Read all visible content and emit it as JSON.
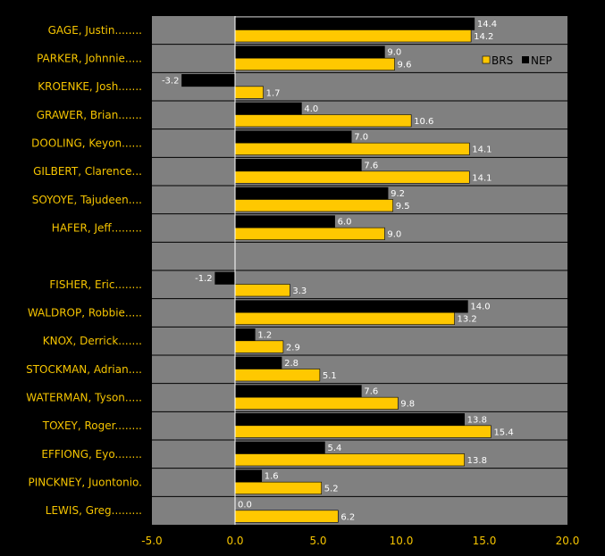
{
  "chart_data": {
    "type": "bar",
    "orientation": "horizontal",
    "xlim": [
      -5.0,
      20.0
    ],
    "x_ticks": [
      "-5.0",
      "0.0",
      "5.0",
      "10.0",
      "15.0",
      "20.0"
    ],
    "legend": {
      "placement": "top-right"
    },
    "colors": {
      "background": "#000000",
      "plot_bg": "#808080",
      "BRS": "#ffc800",
      "NEP": "#000000",
      "label_text": "#f5c400",
      "value_text": "#ffffff"
    },
    "series": [
      {
        "name": "BRS",
        "color": "#ffc800"
      },
      {
        "name": "NEP",
        "color": "#000000"
      }
    ],
    "rows": [
      {
        "label": "GAGE, Justin........",
        "NEP": 14.4,
        "BRS": 14.2
      },
      {
        "label": "PARKER, Johnnie.....",
        "NEP": 9.0,
        "BRS": 9.6
      },
      {
        "label": "KROENKE, Josh.......",
        "NEP": -3.2,
        "BRS": 1.7
      },
      {
        "label": "GRAWER, Brian.......",
        "NEP": 4.0,
        "BRS": 10.6
      },
      {
        "label": "DOOLING, Keyon......",
        "NEP": 7.0,
        "BRS": 14.1
      },
      {
        "label": "GILBERT, Clarence...",
        "NEP": 7.6,
        "BRS": 14.1
      },
      {
        "label": "SOYOYE, Tajudeen....",
        "NEP": 9.2,
        "BRS": 9.5
      },
      {
        "label": "HAFER, Jeff.........",
        "NEP": 6.0,
        "BRS": 9.0
      },
      {
        "label": "",
        "NEP": null,
        "BRS": null
      },
      {
        "label": "FISHER, Eric........",
        "NEP": -1.2,
        "BRS": 3.3
      },
      {
        "label": "WALDROP, Robbie.....",
        "NEP": 14.0,
        "BRS": 13.2
      },
      {
        "label": "KNOX, Derrick.......",
        "NEP": 1.2,
        "BRS": 2.9
      },
      {
        "label": "STOCKMAN, Adrian....",
        "NEP": 2.8,
        "BRS": 5.1
      },
      {
        "label": "WATERMAN, Tyson.....",
        "NEP": 7.6,
        "BRS": 9.8
      },
      {
        "label": "TOXEY, Roger........",
        "NEP": 13.8,
        "BRS": 15.4
      },
      {
        "label": "EFFIONG, Eyo........",
        "NEP": 5.4,
        "BRS": 13.8
      },
      {
        "label": "PINCKNEY, Juontonio.",
        "NEP": 1.6,
        "BRS": 5.2
      },
      {
        "label": "LEWIS, Greg.........",
        "NEP": 0.0,
        "BRS": 6.2
      }
    ]
  }
}
